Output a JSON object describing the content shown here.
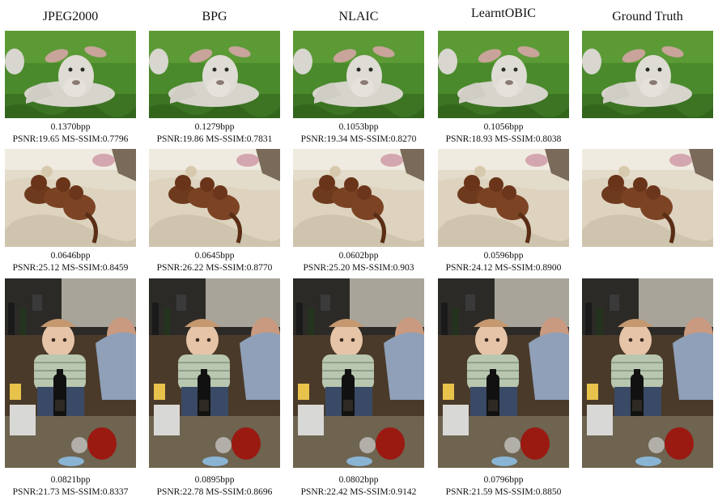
{
  "figure": {
    "columns": [
      "JPEG2000",
      "BPG",
      "NLAIC",
      "LearntOBIC",
      "Ground Truth"
    ],
    "rows": [
      {
        "subject": "lamb",
        "captions": [
          {
            "bpp": "0.1370bpp",
            "metrics": "PSNR:19.65 MS-SSIM:0.7796"
          },
          {
            "bpp": "0.1279bpp",
            "metrics": "PSNR:19.86 MS-SSIM:0.7831"
          },
          {
            "bpp": "0.1053bpp",
            "metrics": "PSNR:19.34 MS-SSIM:0.8270"
          },
          {
            "bpp": "0.1056bpp",
            "metrics": "PSNR:18.93 MS-SSIM:0.8038"
          }
        ]
      },
      {
        "subject": "dachshund puppies on bed",
        "captions": [
          {
            "bpp": "0.0646bpp",
            "metrics": "PSNR:25.12 MS-SSIM:0.8459"
          },
          {
            "bpp": "0.0645bpp",
            "metrics": "PSNR:26.22 MS-SSIM:0.8770"
          },
          {
            "bpp": "0.0602bpp",
            "metrics": "PSNR:25.20 MS-SSIM:0.903"
          },
          {
            "bpp": "0.0596bpp",
            "metrics": "PSNR:24.12 MS-SSIM:0.8900"
          }
        ]
      },
      {
        "subject": "baby with bottle",
        "captions": [
          {
            "bpp": "0.0821bpp",
            "metrics": "PSNR:21.73 MS-SSIM:0.8337"
          },
          {
            "bpp": "0.0895bpp",
            "metrics": "PSNR:22.78 MS-SSIM:0.8696"
          },
          {
            "bpp": "0.0802bpp",
            "metrics": "PSNR:22.42 MS-SSIM:0.9142"
          },
          {
            "bpp": "0.0796bpp",
            "metrics": "PSNR:21.59 MS-SSIM:0.8850"
          }
        ]
      }
    ]
  }
}
